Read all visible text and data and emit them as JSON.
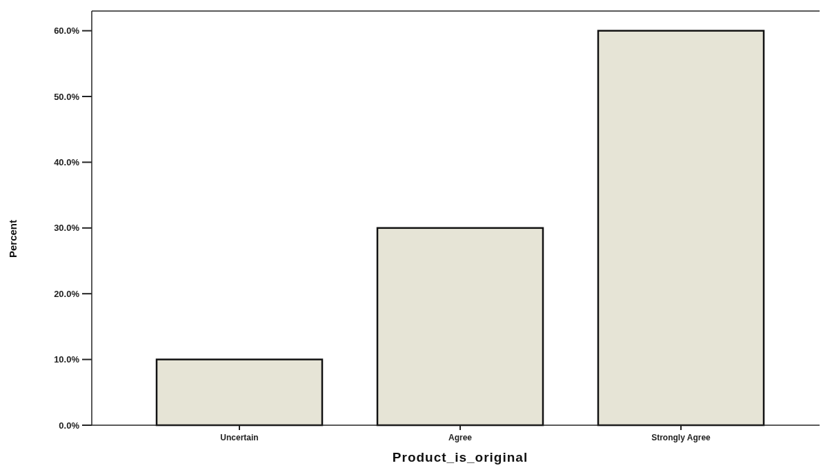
{
  "chart_data": {
    "type": "bar",
    "xlabel": "Product_is_original",
    "ylabel": "Percent",
    "categories": [
      "Uncertain",
      "Agree",
      "Strongly Agree"
    ],
    "values": [
      10,
      30,
      60
    ],
    "color": "#e6e4d6",
    "ylim": [
      0,
      63
    ],
    "yticks": [
      {
        "value": 0,
        "label": "0.0%"
      },
      {
        "value": 10,
        "label": "10.0%"
      },
      {
        "value": 20,
        "label": "20.0%"
      },
      {
        "value": 30,
        "label": "30.0%"
      },
      {
        "value": 40,
        "label": "40.0%"
      },
      {
        "value": 50,
        "label": "50.0%"
      },
      {
        "value": 60,
        "label": "60.0%"
      }
    ],
    "grid": false
  }
}
